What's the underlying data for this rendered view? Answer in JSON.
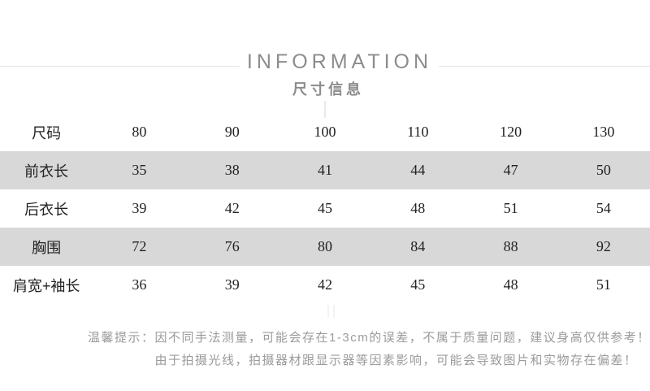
{
  "header": {
    "title": "INFORMATION",
    "subtitle": "尺寸信息"
  },
  "size_table": {
    "columns": [
      "尺码",
      "80",
      "90",
      "100",
      "110",
      "120",
      "130"
    ],
    "rows": [
      {
        "label": "前衣长",
        "values": [
          "35",
          "38",
          "41",
          "44",
          "47",
          "50"
        ]
      },
      {
        "label": "后衣长",
        "values": [
          "39",
          "42",
          "45",
          "48",
          "51",
          "54"
        ]
      },
      {
        "label": "胸围",
        "values": [
          "72",
          "76",
          "80",
          "84",
          "88",
          "92"
        ]
      },
      {
        "label": "肩宽+袖长",
        "values": [
          "36",
          "39",
          "42",
          "45",
          "48",
          "51"
        ]
      }
    ]
  },
  "notice": {
    "prefix": "温馨提示：",
    "lines": [
      "因不同手法测量，可能会存在1-3cm的误差，不属于质量问题，建议身高仅供参考！",
      "由于拍摄光线，拍摄器材跟显示器等因素影响，可能会导致图片和实物存在偏差！"
    ]
  },
  "colors": {
    "title_gray": "#8c8c8c",
    "stripe_gray": "#d8d8d8",
    "table_text": "#222222",
    "notice_gray": "#9b9b9b",
    "divider_gray": "#e4e4e4"
  }
}
